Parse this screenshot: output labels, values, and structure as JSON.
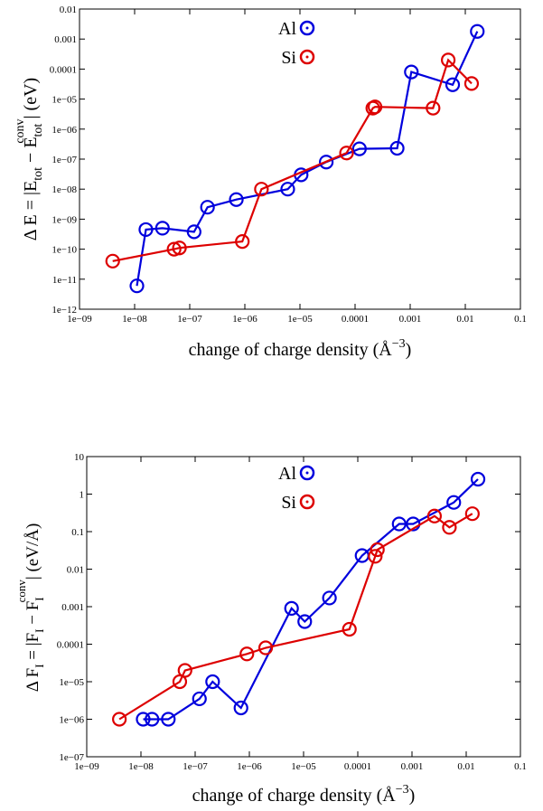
{
  "colors": {
    "Al": "#0000dd",
    "Si": "#dd0000",
    "axis": "#000000",
    "background": "#ffffff"
  },
  "chart_data": [
    {
      "type": "scatter",
      "xlabel": "change of charge density (Å",
      "xlabel_sup": "−3",
      "xlabel_end": ")",
      "ylabel": "Δ E = |E",
      "ylabel_sub1": "tot",
      "ylabel_mid": " − E",
      "ylabel_sub2": "tot",
      "ylabel_sup2": "conv",
      "ylabel_end": "| (eV)",
      "x_scale": "log",
      "y_scale": "log",
      "xlim": [
        1e-09,
        0.1
      ],
      "ylim": [
        1e-12,
        0.01
      ],
      "x_ticks": [
        "1e−09",
        "1e−08",
        "1e−07",
        "1e−06",
        "1e−05",
        "0.0001",
        "0.001",
        "0.01",
        "0.1"
      ],
      "y_ticks": [
        "1e−12",
        "1e−11",
        "1e−10",
        "1e−09",
        "1e−08",
        "1e−07",
        "1e−06",
        "1e−05",
        "0.0001",
        "0.001",
        "0.01"
      ],
      "grid": false,
      "legend_position": "top-center",
      "series": [
        {
          "name": "Al",
          "x": [
            1.1e-08,
            1.6e-08,
            3.2e-08,
            1.2e-07,
            2.1e-07,
            7e-07,
            6e-06,
            1.05e-05,
            3e-05,
            0.00012,
            0.00058,
            0.00105,
            0.0059,
            0.0165
          ],
          "y": [
            6e-12,
            4.5e-10,
            5e-10,
            3.8e-10,
            2.5e-09,
            4.5e-09,
            1e-08,
            3e-08,
            8e-08,
            2.2e-07,
            2.3e-07,
            8e-05,
            3e-05,
            0.0018
          ]
        },
        {
          "name": "Si",
          "x": [
            4e-09,
            5.2e-08,
            6.5e-08,
            9e-07,
            2e-06,
            7e-05,
            0.00021,
            0.00023,
            0.0026,
            0.0049,
            0.013
          ],
          "y": [
            4e-11,
            1e-10,
            1.1e-10,
            1.8e-10,
            1e-08,
            1.6e-07,
            5e-06,
            5.5e-06,
            5e-06,
            0.0002,
            3.3e-05
          ]
        }
      ]
    },
    {
      "type": "scatter",
      "xlabel": "change of charge density (Å",
      "xlabel_sup": "−3",
      "xlabel_end": ")",
      "ylabel": "Δ F",
      "ylabel_sub1": "I",
      "ylabel_mid": " = |F",
      "ylabel_sub2": "I",
      "ylabel_mid2": " − F",
      "ylabel_sub3": "I",
      "ylabel_sup3": "conv",
      "ylabel_end": "| (eV/Å)",
      "x_scale": "log",
      "y_scale": "log",
      "xlim": [
        1e-09,
        0.1
      ],
      "ylim": [
        1e-07,
        10
      ],
      "x_ticks": [
        "1e−09",
        "1e−08",
        "1e−07",
        "1e−06",
        "1e−05",
        "0.0001",
        "0.001",
        "0.01",
        "0.1"
      ],
      "y_ticks": [
        "1e−07",
        "1e−06",
        "1e−05",
        "0.0001",
        "0.001",
        "0.01",
        "0.1",
        "1",
        "10"
      ],
      "grid": false,
      "legend_position": "top-center",
      "series": [
        {
          "name": "Al",
          "x": [
            1.1e-08,
            1.6e-08,
            3.2e-08,
            1.2e-07,
            2.1e-07,
            7e-07,
            6e-06,
            1.05e-05,
            3e-05,
            0.00012,
            0.00058,
            0.00105,
            0.0059,
            0.0165
          ],
          "y": [
            1e-06,
            1e-06,
            1e-06,
            3.5e-06,
            1e-05,
            2e-06,
            0.0009,
            0.0004,
            0.0017,
            0.023,
            0.16,
            0.16,
            0.6,
            2.5
          ]
        },
        {
          "name": "Si",
          "x": [
            4e-09,
            5.2e-08,
            6.5e-08,
            9e-07,
            2e-06,
            7e-05,
            0.00021,
            0.00023,
            0.0026,
            0.0049,
            0.013
          ],
          "y": [
            1e-06,
            1e-05,
            2e-05,
            5.5e-05,
            8e-05,
            0.00025,
            0.022,
            0.033,
            0.26,
            0.13,
            0.3
          ]
        }
      ]
    }
  ]
}
